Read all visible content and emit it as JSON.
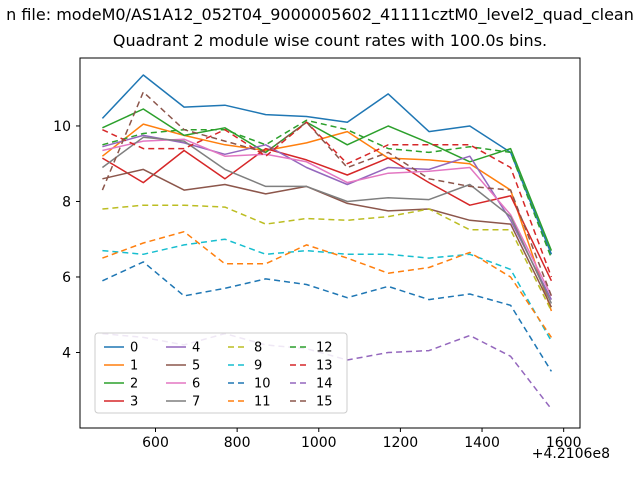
{
  "figure": {
    "file_title": "n file: modeM0/AS1A12_052T04_9000005602_41111cztM0_level2_quad_clean",
    "chart_title": "Quadrant 2 module wise count rates with 100.0s bins."
  },
  "chart_data": {
    "type": "line",
    "title": "Quadrant 2 module wise count rates with 100.0s bins.",
    "suptitle_visible": "n file: modeM0/AS1A12_052T04_9000005602_41111cztM0_level2_quad_clean",
    "xlabel": "",
    "ylabel": "",
    "x_offset_label": "+4.2106e8",
    "xlim": [
      415,
      1640
    ],
    "ylim": [
      2.0,
      11.8
    ],
    "xticks": [
      "600",
      "800",
      "1000",
      "1200",
      "1400",
      "1600"
    ],
    "yticks": [
      "4",
      "6",
      "8",
      "10"
    ],
    "grid": false,
    "legend_position": "lower left",
    "legend_columns": 4,
    "x": [
      470,
      570,
      670,
      770,
      870,
      970,
      1070,
      1170,
      1270,
      1370,
      1470,
      1570
    ],
    "series": [
      {
        "name": "0",
        "color": "#1f77b4",
        "dash": false,
        "values": [
          10.2,
          11.35,
          10.5,
          10.55,
          10.3,
          10.25,
          10.1,
          10.85,
          9.85,
          10.0,
          9.3,
          6.6
        ]
      },
      {
        "name": "1",
        "color": "#ff7f0e",
        "dash": false,
        "values": [
          9.2,
          10.05,
          9.75,
          9.5,
          9.35,
          9.55,
          9.85,
          9.15,
          9.1,
          9.0,
          8.3,
          5.1
        ]
      },
      {
        "name": "2",
        "color": "#2ca02c",
        "dash": false,
        "values": [
          9.95,
          10.45,
          9.75,
          9.95,
          9.3,
          10.1,
          9.5,
          10.0,
          9.55,
          9.05,
          9.4,
          6.7
        ]
      },
      {
        "name": "3",
        "color": "#d62728",
        "dash": false,
        "values": [
          9.15,
          8.5,
          9.35,
          8.6,
          9.4,
          9.1,
          8.7,
          9.15,
          8.5,
          7.9,
          8.15,
          5.9
        ]
      },
      {
        "name": "4",
        "color": "#9467bd",
        "dash": false,
        "values": [
          9.45,
          9.75,
          9.55,
          9.25,
          9.5,
          8.9,
          8.45,
          8.9,
          8.85,
          9.2,
          7.5,
          5.4
        ]
      },
      {
        "name": "5",
        "color": "#8c564b",
        "dash": false,
        "values": [
          8.6,
          8.85,
          8.3,
          8.45,
          8.2,
          8.4,
          7.95,
          7.75,
          7.8,
          7.5,
          7.4,
          5.2
        ]
      },
      {
        "name": "6",
        "color": "#e377c2",
        "dash": false,
        "values": [
          9.35,
          9.6,
          9.65,
          9.2,
          9.25,
          9.05,
          8.5,
          8.75,
          8.8,
          8.9,
          7.65,
          5.5
        ]
      },
      {
        "name": "7",
        "color": "#7f7f7f",
        "dash": false,
        "values": [
          8.9,
          9.7,
          9.6,
          8.85,
          8.4,
          8.4,
          8.0,
          8.1,
          8.05,
          8.45,
          7.6,
          5.3
        ]
      },
      {
        "name": "8",
        "color": "#bcbd22",
        "dash": true,
        "values": [
          7.8,
          7.9,
          7.9,
          7.85,
          7.4,
          7.55,
          7.5,
          7.6,
          7.8,
          7.25,
          7.25,
          5.1
        ]
      },
      {
        "name": "9",
        "color": "#17becf",
        "dash": true,
        "values": [
          6.7,
          6.6,
          6.85,
          7.0,
          6.6,
          6.7,
          6.6,
          6.6,
          6.5,
          6.6,
          6.2,
          4.3
        ]
      },
      {
        "name": "10",
        "color": "#1f77b4",
        "dash": true,
        "values": [
          5.9,
          6.4,
          5.5,
          5.7,
          5.95,
          5.8,
          5.45,
          5.75,
          5.4,
          5.55,
          5.25,
          3.5
        ]
      },
      {
        "name": "11",
        "color": "#ff7f0e",
        "dash": true,
        "values": [
          6.5,
          6.9,
          7.2,
          6.35,
          6.35,
          6.85,
          6.5,
          6.1,
          6.25,
          6.65,
          6.0,
          4.4
        ]
      },
      {
        "name": "12",
        "color": "#2ca02c",
        "dash": true,
        "values": [
          9.5,
          9.8,
          9.9,
          9.9,
          9.5,
          10.15,
          9.9,
          9.4,
          9.3,
          9.45,
          9.3,
          6.5
        ]
      },
      {
        "name": "13",
        "color": "#d62728",
        "dash": true,
        "values": [
          9.9,
          9.4,
          9.4,
          9.9,
          9.2,
          10.1,
          9.0,
          9.5,
          9.5,
          9.5,
          8.9,
          6.0
        ]
      },
      {
        "name": "14",
        "color": "#9467bd",
        "dash": true,
        "values": [
          4.5,
          4.4,
          4.2,
          4.5,
          4.2,
          4.1,
          3.8,
          4.0,
          4.05,
          4.45,
          3.9,
          2.5
        ]
      },
      {
        "name": "15",
        "color": "#8c564b",
        "dash": true,
        "values": [
          8.3,
          10.9,
          9.9,
          9.6,
          9.3,
          10.1,
          8.9,
          9.3,
          8.6,
          8.4,
          8.3,
          5.5
        ]
      }
    ]
  }
}
